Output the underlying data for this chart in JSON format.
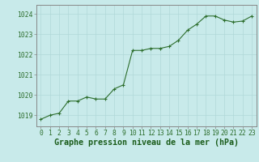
{
  "x": [
    0,
    1,
    2,
    3,
    4,
    5,
    6,
    7,
    8,
    9,
    10,
    11,
    12,
    13,
    14,
    15,
    16,
    17,
    18,
    19,
    20,
    21,
    22,
    23
  ],
  "y": [
    1018.8,
    1019.0,
    1019.1,
    1019.7,
    1019.7,
    1019.9,
    1019.8,
    1019.8,
    1020.3,
    1020.5,
    1022.2,
    1022.2,
    1022.3,
    1022.3,
    1022.4,
    1022.7,
    1023.2,
    1023.5,
    1023.9,
    1023.9,
    1023.7,
    1023.6,
    1023.65,
    1023.9
  ],
  "line_color": "#2d6e2d",
  "marker_color": "#2d6e2d",
  "bg_color": "#c8eaea",
  "grid_color": "#b0d8d8",
  "border_color": "#888888",
  "xlabel": "Graphe pression niveau de la mer (hPa)",
  "xlabel_color": "#1a5c1a",
  "yticks": [
    1019,
    1020,
    1021,
    1022,
    1023,
    1024
  ],
  "xticks": [
    0,
    1,
    2,
    3,
    4,
    5,
    6,
    7,
    8,
    9,
    10,
    11,
    12,
    13,
    14,
    15,
    16,
    17,
    18,
    19,
    20,
    21,
    22,
    23
  ],
  "ylim": [
    1018.45,
    1024.45
  ],
  "xlim": [
    -0.5,
    23.5
  ],
  "tick_label_color": "#2d6e2d",
  "tick_fontsize": 5.8,
  "xlabel_fontsize": 7.2,
  "linewidth": 0.8,
  "markersize": 3.5,
  "markeredgewidth": 0.8
}
